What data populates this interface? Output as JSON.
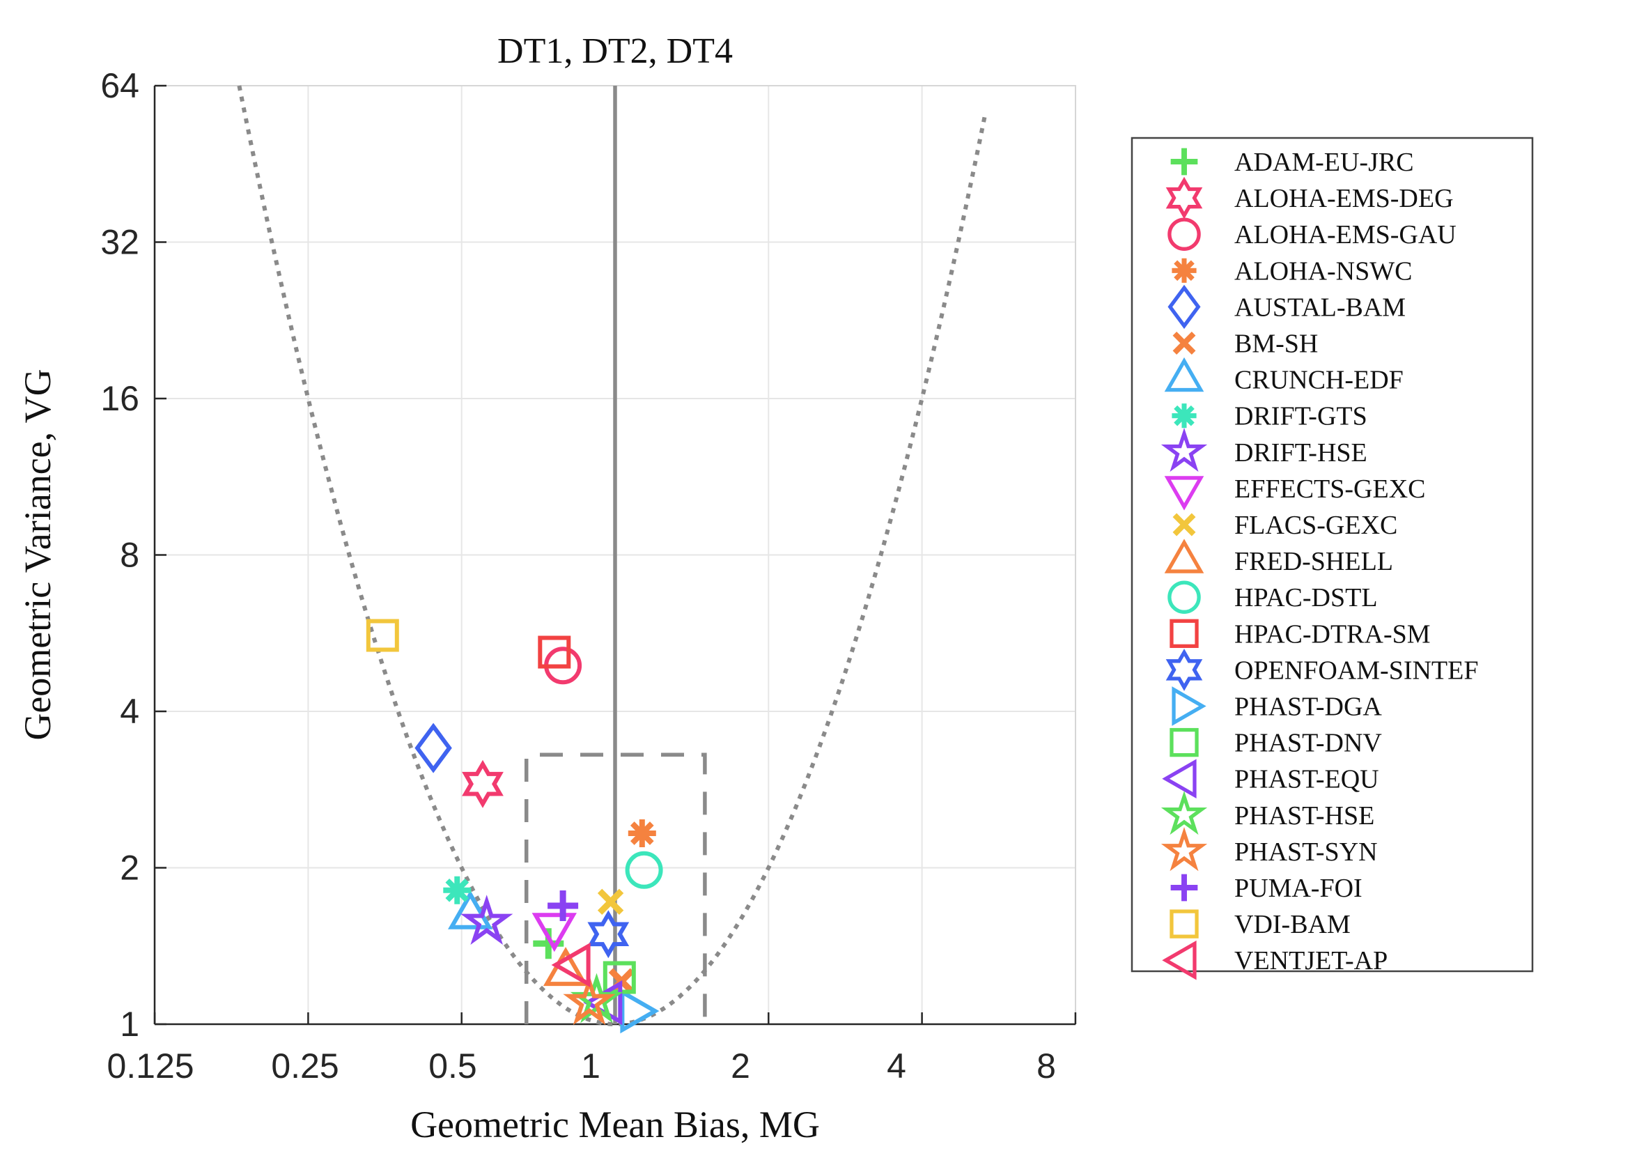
{
  "title": "DT1, DT2, DT4",
  "axes": {
    "xlabel": "Geometric Mean Bias, MG",
    "ylabel": "Geometric Variance, VG",
    "x_ticks": [
      0.125,
      0.25,
      0.5,
      1,
      2,
      4,
      8
    ],
    "x_tick_labels": [
      "0.125",
      "0.25",
      "0.5",
      "1",
      "2",
      "4",
      "8"
    ],
    "y_ticks": [
      1,
      2,
      4,
      8,
      16,
      32,
      64
    ],
    "y_tick_labels": [
      "1",
      "2",
      "4",
      "8",
      "16",
      "32",
      "64"
    ],
    "x_range": [
      0.125,
      8
    ],
    "y_range": [
      1,
      64
    ],
    "scale": "log2",
    "grid": true
  },
  "chart_data": {
    "type": "scatter",
    "title": "DT1, DT2, DT4",
    "xlabel": "Geometric Mean Bias, MG",
    "ylabel": "Geometric Variance, VG",
    "xlim": [
      0.125,
      8
    ],
    "ylim": [
      1,
      64
    ],
    "legend_position": "right-outside",
    "series": [
      {
        "name": "ADAM-EU-JRC",
        "marker": "plus",
        "color": "#5ce05c",
        "MG": 0.74,
        "VG": 1.43
      },
      {
        "name": "ALOHA-EMS-DEG",
        "marker": "hexagram",
        "color": "#f23a6e",
        "MG": 0.55,
        "VG": 2.9
      },
      {
        "name": "ALOHA-EMS-GAU",
        "marker": "circle",
        "color": "#f23a6e",
        "MG": 0.79,
        "VG": 4.9
      },
      {
        "name": "ALOHA-NSWC",
        "marker": "asterisk",
        "color": "#f5823f",
        "MG": 1.13,
        "VG": 2.33
      },
      {
        "name": "AUSTAL-BAM",
        "marker": "diamond",
        "color": "#3f63f0",
        "MG": 0.44,
        "VG": 3.4
      },
      {
        "name": "BM-SH",
        "marker": "x",
        "color": "#f5823f",
        "MG": 1.03,
        "VG": 1.21
      },
      {
        "name": "CRUNCH-EDF",
        "marker": "triangle-up",
        "color": "#45aef2",
        "MG": 0.52,
        "VG": 1.62
      },
      {
        "name": "DRIFT-GTS",
        "marker": "asterisk",
        "color": "#3ce6bb",
        "MG": 0.49,
        "VG": 1.81
      },
      {
        "name": "DRIFT-HSE",
        "marker": "star",
        "color": "#8a42f2",
        "MG": 0.56,
        "VG": 1.57
      },
      {
        "name": "EFFECTS-GEXC",
        "marker": "triangle-down",
        "color": "#dc3cf0",
        "MG": 0.76,
        "VG": 1.54
      },
      {
        "name": "FLACS-GEXC",
        "marker": "x",
        "color": "#f2c63c",
        "MG": 0.98,
        "VG": 1.72
      },
      {
        "name": "FRED-SHELL",
        "marker": "triangle-up",
        "color": "#f5823f",
        "MG": 0.8,
        "VG": 1.26
      },
      {
        "name": "HPAC-DSTL",
        "marker": "circle",
        "color": "#3ce6bb",
        "MG": 1.14,
        "VG": 1.98
      },
      {
        "name": "HPAC-DTRA-SM",
        "marker": "square",
        "color": "#f24242",
        "MG": 0.76,
        "VG": 5.2
      },
      {
        "name": "OPENFOAM-SINTEF",
        "marker": "hexagram",
        "color": "#3f63f0",
        "MG": 0.97,
        "VG": 1.49
      },
      {
        "name": "PHAST-DGA",
        "marker": "triangle-right",
        "color": "#45aef2",
        "MG": 1.09,
        "VG": 1.06
      },
      {
        "name": "PHAST-DNV",
        "marker": "square",
        "color": "#5ce05c",
        "MG": 1.02,
        "VG": 1.23
      },
      {
        "name": "PHAST-EQU",
        "marker": "triangle-left",
        "color": "#8a42f2",
        "MG": 0.97,
        "VG": 1.1
      },
      {
        "name": "PHAST-HSE",
        "marker": "star",
        "color": "#5ce05c",
        "MG": 0.92,
        "VG": 1.11
      },
      {
        "name": "PHAST-SYN",
        "marker": "star",
        "color": "#f5823f",
        "MG": 0.89,
        "VG": 1.1
      },
      {
        "name": "PUMA-FOI",
        "marker": "plus",
        "color": "#8a42f2",
        "MG": 0.79,
        "VG": 1.69
      },
      {
        "name": "VDI-BAM",
        "marker": "square",
        "color": "#f2c63c",
        "MG": 0.35,
        "VG": 5.6
      },
      {
        "name": "VENTJET-AP",
        "marker": "triangle-left",
        "color": "#f23a6e",
        "MG": 0.84,
        "VG": 1.3
      }
    ],
    "reference": {
      "vertical_line_MG": 1,
      "parabola": "log2(VG) = (log2(MG))^2",
      "acceptance_box": {
        "MG_min": 0.67,
        "MG_max": 1.5,
        "VG_min": 1,
        "VG_max": 3.3
      }
    }
  },
  "colors": {
    "background": "#ffffff",
    "axis": "#262626",
    "frame": "#d6d6d6",
    "grid": "#e6e6e6",
    "reference_gray": "#8a8a8a",
    "legend_border": "#444444",
    "text": "#111111"
  }
}
